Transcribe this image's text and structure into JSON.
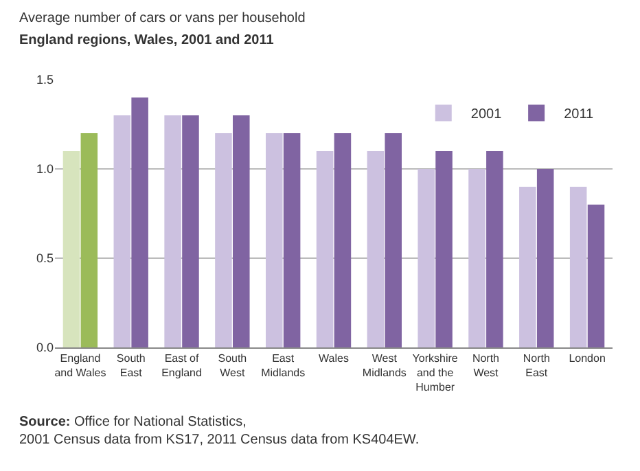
{
  "chart_data": {
    "type": "bar",
    "title": "Average number of cars or vans per household",
    "subtitle": "England regions, Wales, 2001 and 2011",
    "categories": [
      "England and Wales",
      "South East",
      "East of England",
      "South West",
      "East Midlands",
      "Wales",
      "West Midlands",
      "Yorkshire and the Humber",
      "North West",
      "North East",
      "London"
    ],
    "series": [
      {
        "name": "2001",
        "color": "#ccc1e0",
        "colors": [
          "#d7e4bd",
          "#ccc1e0",
          "#ccc1e0",
          "#ccc1e0",
          "#ccc1e0",
          "#ccc1e0",
          "#ccc1e0",
          "#ccc1e0",
          "#ccc1e0",
          "#ccc1e0",
          "#ccc1e0"
        ],
        "values": [
          1.1,
          1.3,
          1.3,
          1.2,
          1.2,
          1.1,
          1.1,
          1.0,
          1.0,
          0.9,
          0.9
        ]
      },
      {
        "name": "2011",
        "color": "#8064a2",
        "colors": [
          "#9bbb59",
          "#8064a2",
          "#8064a2",
          "#8064a2",
          "#8064a2",
          "#8064a2",
          "#8064a2",
          "#8064a2",
          "#8064a2",
          "#8064a2",
          "#8064a2"
        ],
        "values": [
          1.2,
          1.4,
          1.3,
          1.3,
          1.2,
          1.2,
          1.2,
          1.1,
          1.1,
          1.0,
          0.8
        ]
      }
    ],
    "ylim": [
      0,
      1.5
    ],
    "yticks": [
      {
        "value": 0,
        "label": "0.0"
      },
      {
        "value": 0.5,
        "label": "0.5"
      },
      {
        "value": 1,
        "label": "1.0"
      },
      {
        "value": 1.5,
        "label": "1.5"
      }
    ],
    "grid": "y",
    "legend": "top right",
    "annotations": [
      "Source: Office for National Statistics,\n2001 Census data from KS17, 2011 Census data from KS404EW."
    ]
  }
}
